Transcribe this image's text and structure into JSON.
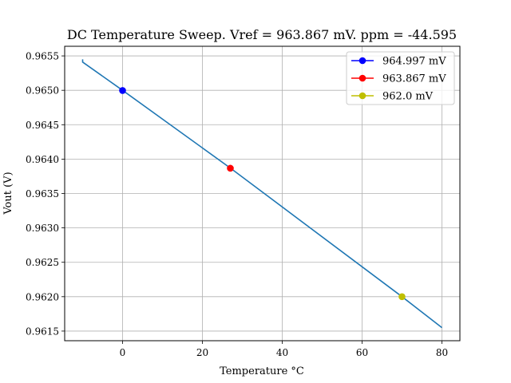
{
  "chart_data": {
    "type": "line",
    "title": "DC Temperature Sweep. Vref = 963.867 mV. ppm = -44.595",
    "xlabel": "Temperature °C",
    "ylabel": "Vout (V)",
    "xlim": [
      -14.5,
      84.5
    ],
    "ylim": [
      0.96136,
      0.96564
    ],
    "xticks": [
      0,
      20,
      40,
      60,
      80
    ],
    "yticks": [
      0.9615,
      0.962,
      0.9625,
      0.963,
      0.9635,
      0.964,
      0.9645,
      0.965,
      0.9655
    ],
    "ytick_labels": [
      "0.9615",
      "0.9620",
      "0.9625",
      "0.9630",
      "0.9635",
      "0.9640",
      "0.9645",
      "0.9650",
      "0.9655"
    ],
    "grid": true,
    "legend_position": "top-right",
    "series": [
      {
        "color": "#1f77b4",
        "x": [
          -10,
          -10,
          0,
          27,
          70,
          80
        ],
        "y": [
          0.96545,
          0.96541,
          0.965,
          0.96387,
          0.962,
          0.96155
        ]
      }
    ],
    "markers": [
      {
        "name": "964.997 mV",
        "x": 0,
        "y": 0.964997,
        "color": "#0000ff"
      },
      {
        "name": "963.867 mV",
        "x": 27,
        "y": 0.963867,
        "color": "#ff0000"
      },
      {
        "name": "962.0 mV",
        "x": 70,
        "y": 0.962,
        "color": "#bfbf00"
      }
    ]
  }
}
